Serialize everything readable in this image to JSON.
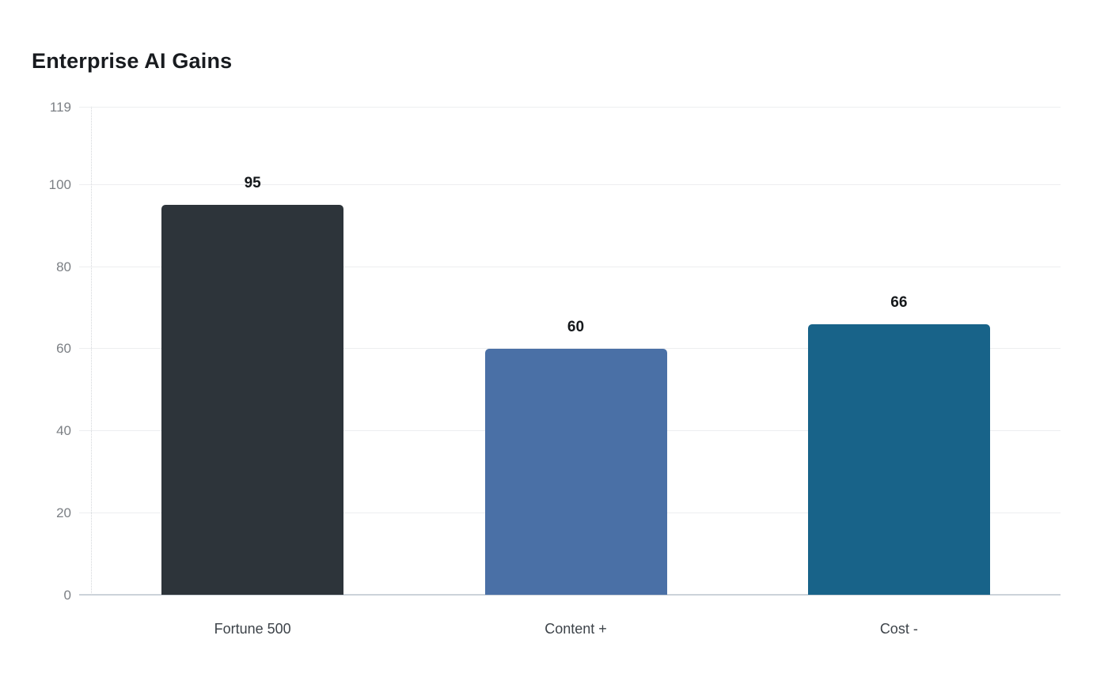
{
  "page": {
    "background": "#ffffff"
  },
  "chart_data": {
    "type": "bar",
    "title": "Enterprise AI Gains",
    "categories": [
      "Fortune 500",
      "Content +",
      "Cost -"
    ],
    "values": [
      95,
      60,
      66
    ],
    "value_labels": [
      "95",
      "60",
      "66"
    ],
    "bar_colors": [
      "#2d343a",
      "#4a70a6",
      "#186389"
    ],
    "yticks": [
      "0",
      "20",
      "40",
      "60",
      "80",
      "100",
      "119"
    ],
    "ytick_values": [
      0,
      20,
      40,
      60,
      80,
      100,
      119
    ],
    "ylim": [
      0,
      119
    ],
    "xlabel": "",
    "ylabel": "",
    "grid": true,
    "legend": false,
    "colors": {
      "title": "#181b1f",
      "grid_line": "#edeef0",
      "baseline": "#ccd3d9",
      "axis_dotted": "#d2d5d9",
      "tick_label": "#7b7f84",
      "category_label": "#3d4349",
      "value_label": "#15181b"
    }
  }
}
